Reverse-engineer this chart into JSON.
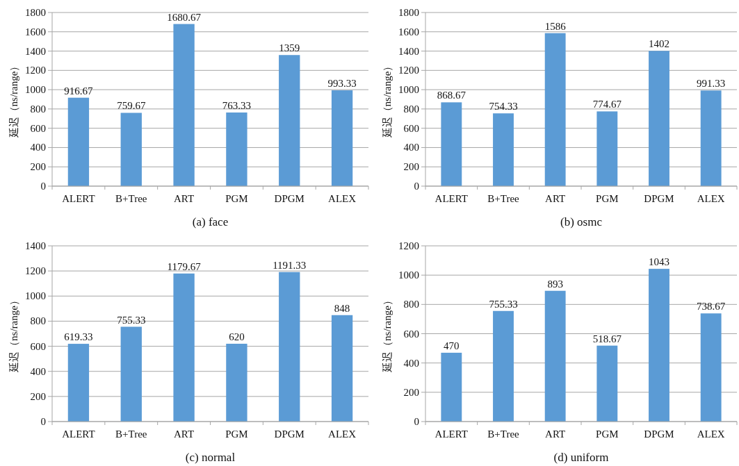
{
  "chart_data": [
    {
      "type": "bar",
      "xlabel": "(a) face",
      "ylabel": "延迟（ns/range）",
      "categories": [
        "ALERT",
        "B+Tree",
        "ART",
        "PGM",
        "DPGM",
        "ALEX"
      ],
      "values": [
        916.67,
        759.67,
        1680.67,
        763.33,
        1359,
        993.33
      ],
      "color": "#5b9bd5",
      "ylim": [
        0,
        1800
      ],
      "yticks": [
        0,
        200,
        400,
        600,
        800,
        1000,
        1200,
        1400,
        1600,
        1800
      ],
      "grid": "y",
      "data_labels": true
    },
    {
      "type": "bar",
      "xlabel": "(b) osmc",
      "ylabel": "延迟（ns/range）",
      "categories": [
        "ALERT",
        "B+Tree",
        "ART",
        "PGM",
        "DPGM",
        "ALEX"
      ],
      "values": [
        868.67,
        754.33,
        1586,
        774.67,
        1402,
        991.33
      ],
      "color": "#5b9bd5",
      "ylim": [
        0,
        1800
      ],
      "yticks": [
        0,
        200,
        400,
        600,
        800,
        1000,
        1200,
        1400,
        1600,
        1800
      ],
      "grid": "y",
      "data_labels": true
    },
    {
      "type": "bar",
      "xlabel": "(c) normal",
      "ylabel": "延迟（ns/range）",
      "categories": [
        "ALERT",
        "B+Tree",
        "ART",
        "PGM",
        "DPGM",
        "ALEX"
      ],
      "values": [
        619.33,
        755.33,
        1179.67,
        620,
        1191.33,
        848
      ],
      "color": "#5b9bd5",
      "ylim": [
        0,
        1400
      ],
      "yticks": [
        0,
        200,
        400,
        600,
        800,
        1000,
        1200,
        1400
      ],
      "grid": "y",
      "data_labels": true
    },
    {
      "type": "bar",
      "xlabel": "(d) uniform",
      "ylabel": "延迟（ns/range）",
      "categories": [
        "ALERT",
        "B+Tree",
        "ART",
        "PGM",
        "DPGM",
        "ALEX"
      ],
      "values": [
        470,
        755.33,
        893,
        518.67,
        1043,
        738.67
      ],
      "color": "#5b9bd5",
      "ylim": [
        0,
        1200
      ],
      "yticks": [
        0,
        200,
        400,
        600,
        800,
        1000,
        1200
      ],
      "grid": "y",
      "data_labels": true
    }
  ]
}
